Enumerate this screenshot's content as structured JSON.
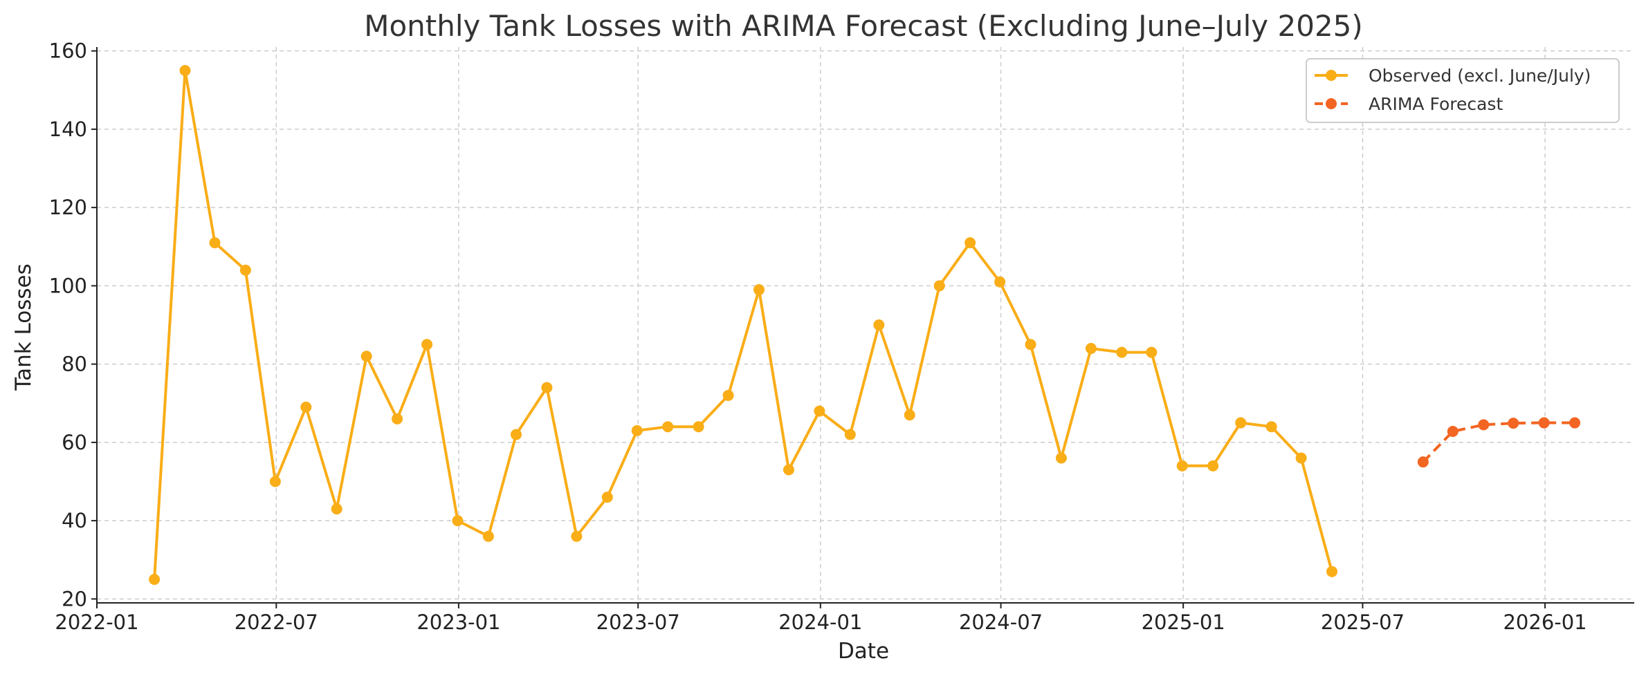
{
  "chart_data": {
    "type": "line",
    "title": "Monthly Tank Losses with ARIMA Forecast (Excluding June–July 2025)",
    "xlabel": "Date",
    "ylabel": "Tank Losses",
    "xlim": [
      "2022-01-01",
      "2026-04-01"
    ],
    "ylim": [
      19,
      161
    ],
    "x_ticks": [
      "2022-01",
      "2022-07",
      "2023-01",
      "2023-07",
      "2024-01",
      "2024-07",
      "2025-01",
      "2025-07",
      "2026-01"
    ],
    "y_ticks": [
      20,
      40,
      60,
      80,
      100,
      120,
      140,
      160
    ],
    "grid": true,
    "legend_position": "top-right",
    "series": [
      {
        "name": "Observed (excl. June/July)",
        "color": "#F9AD17",
        "style": "solid",
        "marker": "circle",
        "x": [
          "2022-02-28",
          "2022-03-31",
          "2022-04-30",
          "2022-05-31",
          "2022-06-30",
          "2022-07-31",
          "2022-08-31",
          "2022-09-30",
          "2022-10-31",
          "2022-11-30",
          "2022-12-31",
          "2023-01-31",
          "2023-02-28",
          "2023-03-31",
          "2023-04-30",
          "2023-05-31",
          "2023-06-30",
          "2023-07-31",
          "2023-08-31",
          "2023-09-30",
          "2023-10-31",
          "2023-11-30",
          "2023-12-31",
          "2024-01-31",
          "2024-02-29",
          "2024-03-31",
          "2024-04-30",
          "2024-05-31",
          "2024-06-30",
          "2024-07-31",
          "2024-08-31",
          "2024-09-30",
          "2024-10-31",
          "2024-11-30",
          "2024-12-31",
          "2025-01-31",
          "2025-02-28",
          "2025-03-31",
          "2025-04-30",
          "2025-05-31"
        ],
        "values": [
          25,
          155,
          111,
          104,
          50,
          69,
          43,
          82,
          66,
          85,
          40,
          36,
          62,
          74,
          36,
          46,
          63,
          64,
          64,
          72,
          99,
          53,
          68,
          62,
          90,
          67,
          100,
          111,
          101,
          85,
          56,
          84,
          83,
          83,
          54,
          54,
          65,
          64,
          56,
          27
        ]
      },
      {
        "name": "ARIMA Forecast",
        "color": "#F26522",
        "style": "dashed",
        "marker": "circle",
        "x": [
          "2025-08-31",
          "2025-09-30",
          "2025-10-31",
          "2025-11-30",
          "2025-12-31",
          "2026-01-31"
        ],
        "values": [
          55,
          62.8,
          64.5,
          64.9,
          65.0,
          65.0
        ]
      }
    ]
  }
}
